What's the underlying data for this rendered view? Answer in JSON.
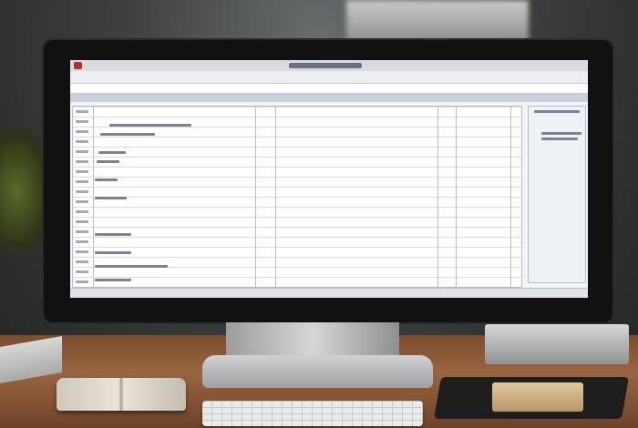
{
  "scene": {
    "monitor_color": "#111111",
    "desk_color": "#9a6541",
    "screen_accent": "#c9d0de",
    "app_logo_color": "#b3302b"
  },
  "screen": {
    "app": "spreadsheet",
    "text_legible": false
  }
}
